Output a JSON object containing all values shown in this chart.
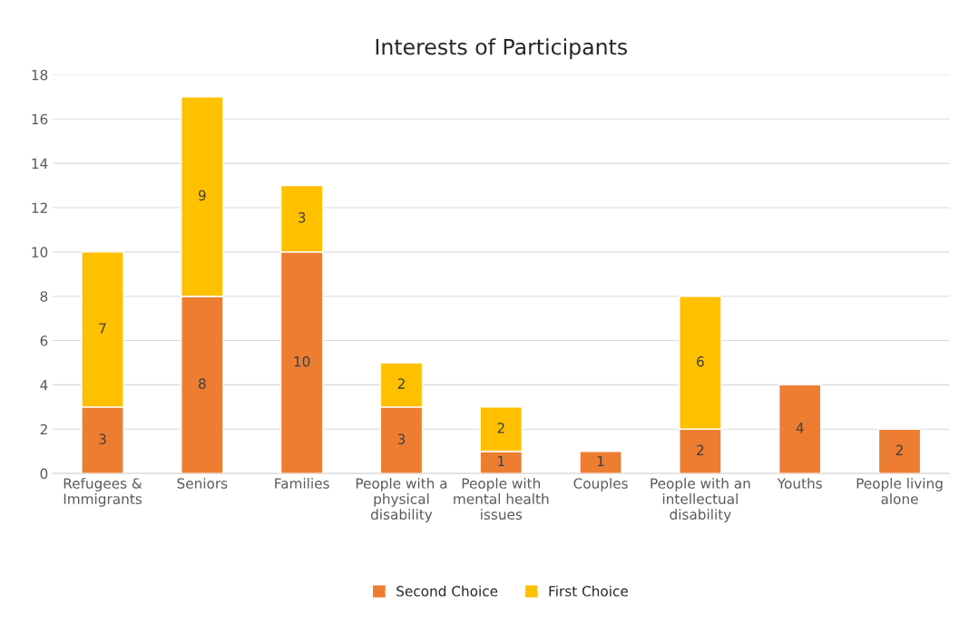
{
  "chart_data": {
    "type": "bar",
    "title": "Interests of Participants",
    "categories": [
      "Refugees & Immigrants",
      "Seniors",
      "Families",
      "People with a physical disability",
      "People with mental health issues",
      "Couples",
      "People with an intellectual disability",
      "Youths",
      "People living alone"
    ],
    "series": [
      {
        "name": "Second Choice",
        "color": "#ed7d31",
        "values": [
          3,
          8,
          10,
          3,
          1,
          1,
          2,
          4,
          2
        ]
      },
      {
        "name": "First Choice",
        "color": "#ffc000",
        "values": [
          7,
          9,
          3,
          2,
          2,
          null,
          6,
          null,
          null
        ]
      }
    ],
    "stacked": true,
    "data_labels": true,
    "ylim": [
      0,
      18
    ],
    "yticks": [
      0,
      2,
      4,
      6,
      8,
      10,
      12,
      14,
      16,
      18
    ],
    "grid": "y",
    "legend": "bottom"
  }
}
